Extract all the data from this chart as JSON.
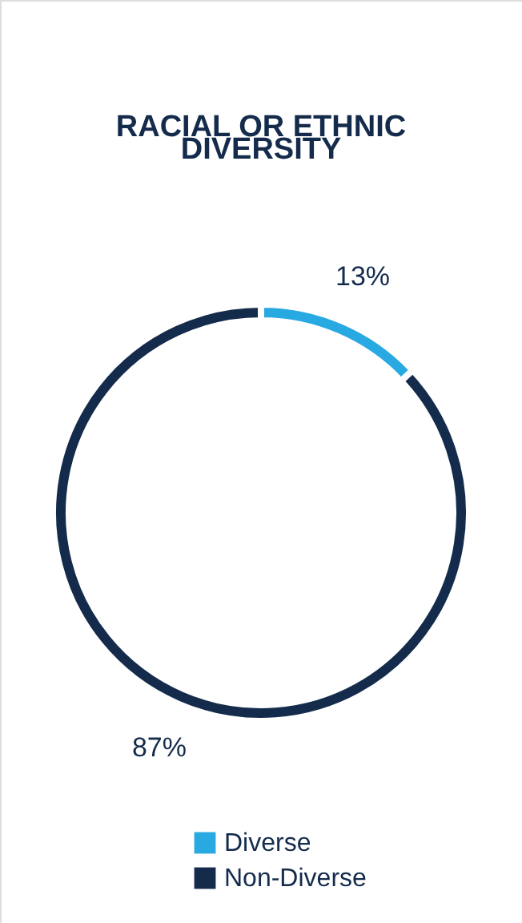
{
  "chart_data": {
    "type": "donut",
    "title": "RACIAL OR ETHNIC DIVERSITY",
    "categories": [
      "Diverse",
      "Non-Diverse"
    ],
    "values": [
      13,
      87
    ],
    "colors": [
      "#29a9e1",
      "#142b4c"
    ],
    "value_labels": [
      "13%",
      "87%"
    ],
    "legend": "bottom"
  }
}
